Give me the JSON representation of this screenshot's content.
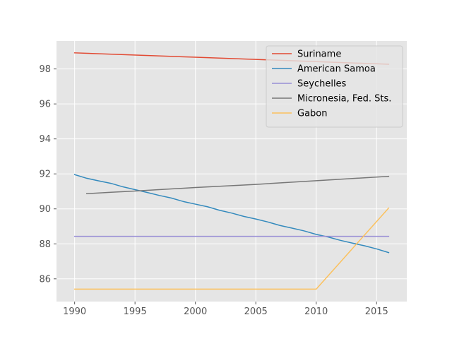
{
  "chart_data": {
    "type": "line",
    "title": "",
    "xlabel": "",
    "ylabel": "",
    "xlim": [
      1988.5,
      2017.5
    ],
    "ylim": [
      84.7,
      99.6
    ],
    "xticks": [
      1990,
      1995,
      2000,
      2005,
      2010,
      2015
    ],
    "yticks": [
      86,
      88,
      90,
      92,
      94,
      96,
      98
    ],
    "grid": true,
    "legend_position": "top-right",
    "series": [
      {
        "name": "Suriname",
        "color": "#E24A33",
        "points": [
          [
            1990,
            98.92
          ],
          [
            2000,
            98.67
          ],
          [
            2010,
            98.42
          ],
          [
            2016,
            98.27
          ]
        ]
      },
      {
        "name": "American Samoa",
        "color": "#348ABD",
        "points": [
          [
            1990,
            91.96
          ],
          [
            1991,
            91.75
          ],
          [
            1992,
            91.6
          ],
          [
            1993,
            91.46
          ],
          [
            1994,
            91.26
          ],
          [
            1995,
            91.1
          ],
          [
            1996,
            90.94
          ],
          [
            1997,
            90.77
          ],
          [
            1998,
            90.62
          ],
          [
            1999,
            90.42
          ],
          [
            2000,
            90.27
          ],
          [
            2001,
            90.12
          ],
          [
            2002,
            89.92
          ],
          [
            2003,
            89.76
          ],
          [
            2004,
            89.57
          ],
          [
            2005,
            89.42
          ],
          [
            2006,
            89.25
          ],
          [
            2007,
            89.05
          ],
          [
            2008,
            88.9
          ],
          [
            2009,
            88.74
          ],
          [
            2010,
            88.54
          ],
          [
            2011,
            88.39
          ],
          [
            2012,
            88.2
          ],
          [
            2013,
            88.04
          ],
          [
            2014,
            87.89
          ],
          [
            2015,
            87.71
          ],
          [
            2016,
            87.5
          ]
        ]
      },
      {
        "name": "Seychelles",
        "color": "#988ED5",
        "points": [
          [
            1990,
            88.43
          ],
          [
            2016,
            88.43
          ]
        ]
      },
      {
        "name": "Micronesia, Fed. Sts.",
        "color": "#777777",
        "points": [
          [
            1991,
            90.87
          ],
          [
            1993,
            90.95
          ],
          [
            1995,
            91.02
          ],
          [
            2000,
            91.22
          ],
          [
            2005,
            91.4
          ],
          [
            2010,
            91.61
          ],
          [
            2016,
            91.86
          ]
        ]
      },
      {
        "name": "Gabon",
        "color": "#FBC15E",
        "points": [
          [
            1990,
            85.41
          ],
          [
            2010,
            85.41
          ],
          [
            2016,
            90.05
          ]
        ]
      }
    ]
  }
}
